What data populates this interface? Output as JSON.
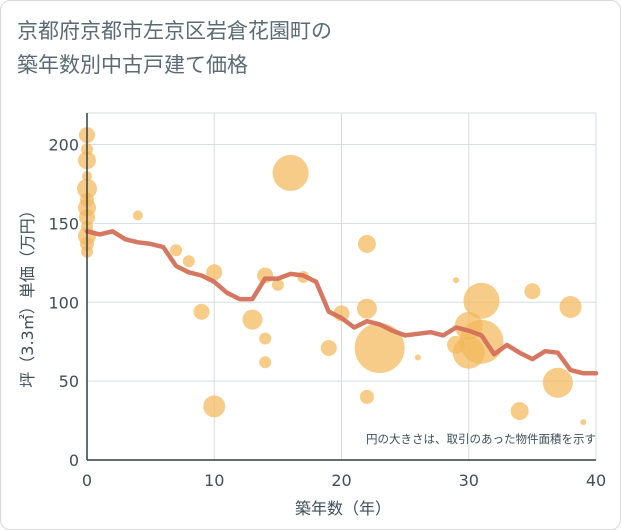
{
  "title": "京都府京都市左京区岩倉花園町の\n築年数別中古戸建て価格",
  "chart_data": {
    "type": "scatter",
    "title": "京都府京都市左京区岩倉花園町の築年数別中古戸建て価格",
    "xlabel": "築年数（年）",
    "ylabel": "坪（3.3㎡）単価（万円）",
    "xlim": [
      0,
      40
    ],
    "ylim": [
      0,
      220
    ],
    "xticks": [
      0,
      10,
      20,
      30,
      40
    ],
    "yticks": [
      0,
      50,
      100,
      150,
      200
    ],
    "grid": true,
    "note": "円の大きさは、取引のあった物件面積を示す",
    "colors": {
      "bubble": "#f3b95a",
      "line": "#d4705a",
      "grid": "#d6dde3",
      "axis": "#2f3f4a"
    },
    "bubbles": [
      {
        "x": 0,
        "y": 206,
        "s": 8
      },
      {
        "x": 0,
        "y": 197,
        "s": 6
      },
      {
        "x": 0,
        "y": 190,
        "s": 9
      },
      {
        "x": 0,
        "y": 180,
        "s": 5
      },
      {
        "x": 0,
        "y": 172,
        "s": 10
      },
      {
        "x": 0,
        "y": 165,
        "s": 7
      },
      {
        "x": 0,
        "y": 160,
        "s": 9
      },
      {
        "x": 0,
        "y": 154,
        "s": 8
      },
      {
        "x": 0,
        "y": 148,
        "s": 6
      },
      {
        "x": 0,
        "y": 142,
        "s": 9
      },
      {
        "x": 0,
        "y": 137,
        "s": 7
      },
      {
        "x": 0,
        "y": 132,
        "s": 6
      },
      {
        "x": 4,
        "y": 155,
        "s": 5
      },
      {
        "x": 7,
        "y": 133,
        "s": 6
      },
      {
        "x": 8,
        "y": 126,
        "s": 6
      },
      {
        "x": 9,
        "y": 94,
        "s": 8
      },
      {
        "x": 10,
        "y": 119,
        "s": 8
      },
      {
        "x": 10,
        "y": 34,
        "s": 11
      },
      {
        "x": 13,
        "y": 89,
        "s": 10
      },
      {
        "x": 14,
        "y": 117,
        "s": 8
      },
      {
        "x": 14,
        "y": 77,
        "s": 6
      },
      {
        "x": 14,
        "y": 62,
        "s": 6
      },
      {
        "x": 15,
        "y": 111,
        "s": 6
      },
      {
        "x": 16,
        "y": 182,
        "s": 18
      },
      {
        "x": 17,
        "y": 116,
        "s": 6
      },
      {
        "x": 19,
        "y": 71,
        "s": 8
      },
      {
        "x": 20,
        "y": 93,
        "s": 8
      },
      {
        "x": 22,
        "y": 137,
        "s": 9
      },
      {
        "x": 22,
        "y": 96,
        "s": 10
      },
      {
        "x": 22,
        "y": 40,
        "s": 7
      },
      {
        "x": 23,
        "y": 71,
        "s": 25
      },
      {
        "x": 26,
        "y": 65,
        "s": 3
      },
      {
        "x": 29,
        "y": 114,
        "s": 3
      },
      {
        "x": 29,
        "y": 73,
        "s": 9
      },
      {
        "x": 30,
        "y": 85,
        "s": 14
      },
      {
        "x": 30,
        "y": 68,
        "s": 16
      },
      {
        "x": 31,
        "y": 101,
        "s": 18
      },
      {
        "x": 31,
        "y": 75,
        "s": 22
      },
      {
        "x": 34,
        "y": 31,
        "s": 9
      },
      {
        "x": 35,
        "y": 107,
        "s": 8
      },
      {
        "x": 37,
        "y": 49,
        "s": 15
      },
      {
        "x": 38,
        "y": 97,
        "s": 11
      },
      {
        "x": 39,
        "y": 24,
        "s": 3
      }
    ],
    "trend": {
      "x": [
        0,
        1,
        2,
        3,
        4,
        5,
        6,
        7,
        8,
        9,
        10,
        11,
        12,
        13,
        14,
        15,
        16,
        17,
        18,
        19,
        20,
        21,
        22,
        23,
        24,
        25,
        26,
        27,
        28,
        29,
        30,
        31,
        32,
        33,
        34,
        35,
        36,
        37,
        38,
        39,
        40
      ],
      "y": [
        145,
        143,
        145,
        140,
        138,
        137,
        135,
        123,
        119,
        117,
        113,
        106,
        102,
        102,
        115,
        115,
        118,
        117,
        113,
        94,
        90,
        84,
        88,
        86,
        82,
        79,
        80,
        81,
        79,
        84,
        82,
        79,
        67,
        73,
        68,
        64,
        69,
        68,
        57,
        55,
        55
      ]
    }
  }
}
